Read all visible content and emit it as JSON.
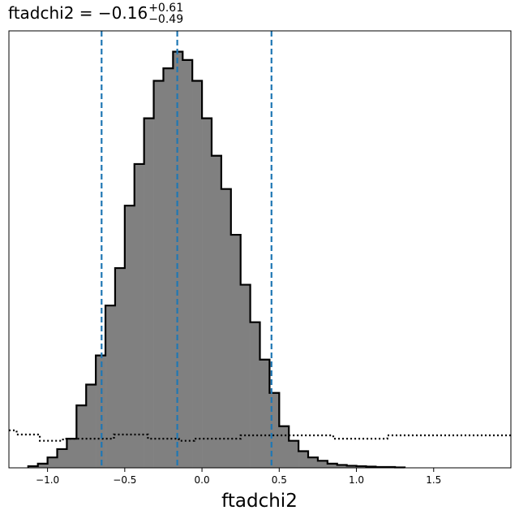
{
  "chart_data": {
    "type": "histogram",
    "title": {
      "prefix": "ftadchi2 = −0.16",
      "upper": "+0.61",
      "lower": "−0.49"
    },
    "xlabel": "ftadchi2",
    "ylabel": "",
    "xlim": [
      -1.25,
      2.0
    ],
    "ylim": [
      0,
      1.05
    ],
    "x_ticks": [
      -1.0,
      -0.5,
      0.0,
      0.5,
      1.0,
      1.5
    ],
    "x_tick_labels": [
      "−1.0",
      "−0.5",
      "0.0",
      "0.5",
      "1.0",
      "1.5"
    ],
    "y_ticks_shown": false,
    "grid": false,
    "histogram": {
      "bin_start": -1.125,
      "bin_width": 0.0625,
      "counts": [
        0.004,
        0.01,
        0.025,
        0.045,
        0.07,
        0.15,
        0.2,
        0.27,
        0.39,
        0.48,
        0.63,
        0.73,
        0.84,
        0.93,
        0.96,
        1.0,
        0.98,
        0.93,
        0.84,
        0.75,
        0.67,
        0.56,
        0.44,
        0.35,
        0.26,
        0.18,
        0.1,
        0.065,
        0.04,
        0.025,
        0.017,
        0.01,
        0.007,
        0.005,
        0.004,
        0.003,
        0.002,
        0.002,
        0.001
      ],
      "fill": "#808080",
      "edge": "#000000"
    },
    "prior": {
      "x": [
        -1.25,
        -1.2,
        -1.05,
        -0.95,
        -0.9,
        -0.6,
        -0.57,
        -0.4,
        -0.35,
        -0.15,
        -0.05,
        0.2,
        0.25,
        0.75,
        0.85,
        1.0,
        1.2,
        1.6,
        2.0
      ],
      "values": [
        0.09,
        0.08,
        0.065,
        0.065,
        0.07,
        0.07,
        0.08,
        0.08,
        0.07,
        0.065,
        0.07,
        0.07,
        0.078,
        0.078,
        0.07,
        0.07,
        0.078,
        0.078,
        0.078
      ],
      "style": "dotted",
      "color": "#000000"
    },
    "quantile_lines": {
      "x": [
        -0.65,
        -0.16,
        0.45
      ],
      "color": "#1f77b4",
      "style": "dashed"
    }
  }
}
